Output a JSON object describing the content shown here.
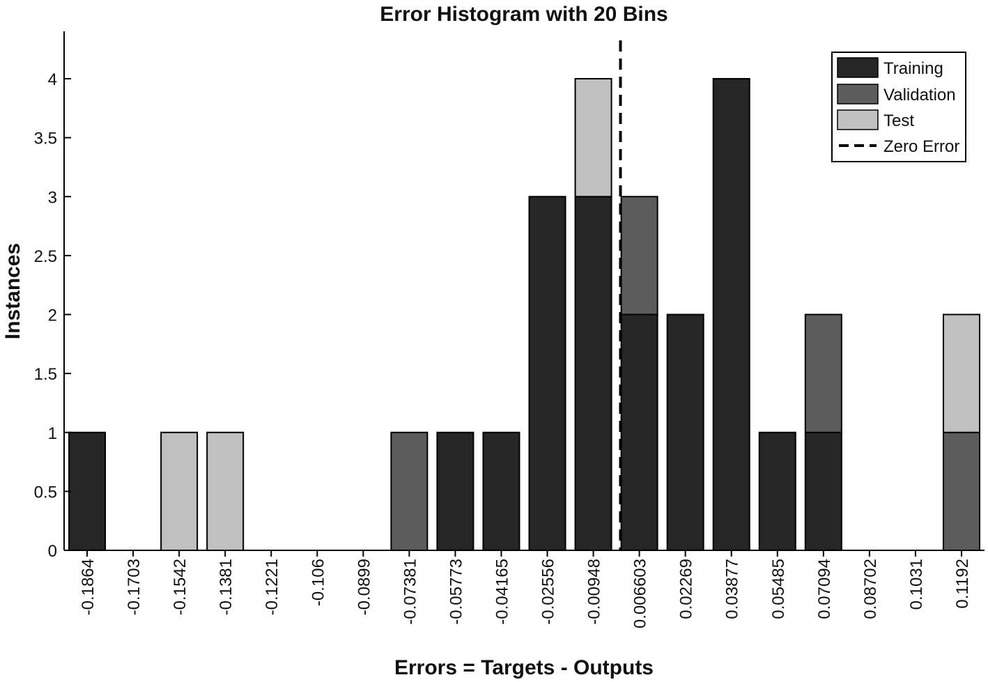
{
  "chart_data": {
    "type": "bar",
    "stacked": true,
    "title": "Error Histogram with 20 Bins",
    "xlabel": "Errors = Targets - Outputs",
    "ylabel": "Instances",
    "ylim": [
      0,
      4.4
    ],
    "yticks": [
      "0",
      "0.5",
      "1",
      "1.5",
      "2",
      "2.5",
      "3",
      "3.5",
      "4"
    ],
    "categories": [
      "-0.1864",
      "-0.1703",
      "-0.1542",
      "-0.1381",
      "-0.1221",
      "-0.106",
      "-0.0899",
      "-0.07381",
      "-0.05773",
      "-0.04165",
      "-0.02556",
      "-0.00948",
      "0.006603",
      "0.02269",
      "0.03877",
      "0.05485",
      "0.07094",
      "0.08702",
      "0.1031",
      "0.1192"
    ],
    "series": [
      {
        "name": "Training",
        "color": "#262626",
        "values": [
          1,
          0,
          0,
          0,
          0,
          0,
          0,
          0,
          1,
          1,
          3,
          3,
          2,
          2,
          4,
          1,
          1,
          0,
          0,
          0
        ]
      },
      {
        "name": "Validation",
        "color": "#5c5c5c",
        "values": [
          0,
          0,
          0,
          0,
          0,
          0,
          0,
          1,
          0,
          0,
          0,
          0,
          1,
          0,
          0,
          0,
          1,
          0,
          0,
          1
        ]
      },
      {
        "name": "Test",
        "color": "#c0c0c0",
        "values": [
          0,
          0,
          1,
          1,
          0,
          0,
          0,
          0,
          0,
          0,
          0,
          1,
          0,
          0,
          0,
          0,
          0,
          0,
          0,
          1
        ]
      }
    ],
    "zero_error_line": {
      "name": "Zero Error",
      "x": 0
    },
    "legend_position": "top-right",
    "grid": false
  }
}
